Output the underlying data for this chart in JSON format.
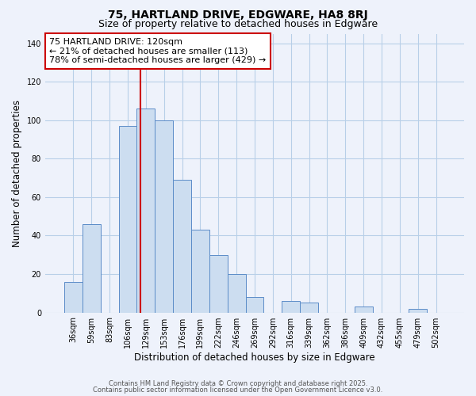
{
  "title": "75, HARTLAND DRIVE, EDGWARE, HA8 8RJ",
  "subtitle": "Size of property relative to detached houses in Edgware",
  "xlabel": "Distribution of detached houses by size in Edgware",
  "ylabel": "Number of detached properties",
  "bar_labels": [
    "36sqm",
    "59sqm",
    "83sqm",
    "106sqm",
    "129sqm",
    "153sqm",
    "176sqm",
    "199sqm",
    "222sqm",
    "246sqm",
    "269sqm",
    "292sqm",
    "316sqm",
    "339sqm",
    "362sqm",
    "386sqm",
    "409sqm",
    "432sqm",
    "455sqm",
    "479sqm",
    "502sqm"
  ],
  "bar_values": [
    16,
    46,
    0,
    97,
    106,
    100,
    69,
    43,
    30,
    20,
    8,
    0,
    6,
    5,
    0,
    0,
    3,
    0,
    0,
    2,
    0
  ],
  "bar_color": "#ccddf0",
  "bar_edge_color": "#5b8cc8",
  "vline_x_index": 3.72,
  "vline_color": "#cc0000",
  "annotation_line1": "75 HARTLAND DRIVE: 120sqm",
  "annotation_line2": "← 21% of detached houses are smaller (113)",
  "annotation_line3": "78% of semi-detached houses are larger (429) →",
  "annotation_box_color": "#ffffff",
  "annotation_box_edge": "#cc0000",
  "ylim": [
    0,
    145
  ],
  "yticks": [
    0,
    20,
    40,
    60,
    80,
    100,
    120,
    140
  ],
  "grid_color": "#b8cfe8",
  "background_color": "#eef2fb",
  "footer1": "Contains HM Land Registry data © Crown copyright and database right 2025.",
  "footer2": "Contains public sector information licensed under the Open Government Licence v3.0.",
  "title_fontsize": 10,
  "subtitle_fontsize": 9,
  "axis_label_fontsize": 8.5,
  "tick_fontsize": 7,
  "annotation_fontsize": 8,
  "footer_fontsize": 6
}
